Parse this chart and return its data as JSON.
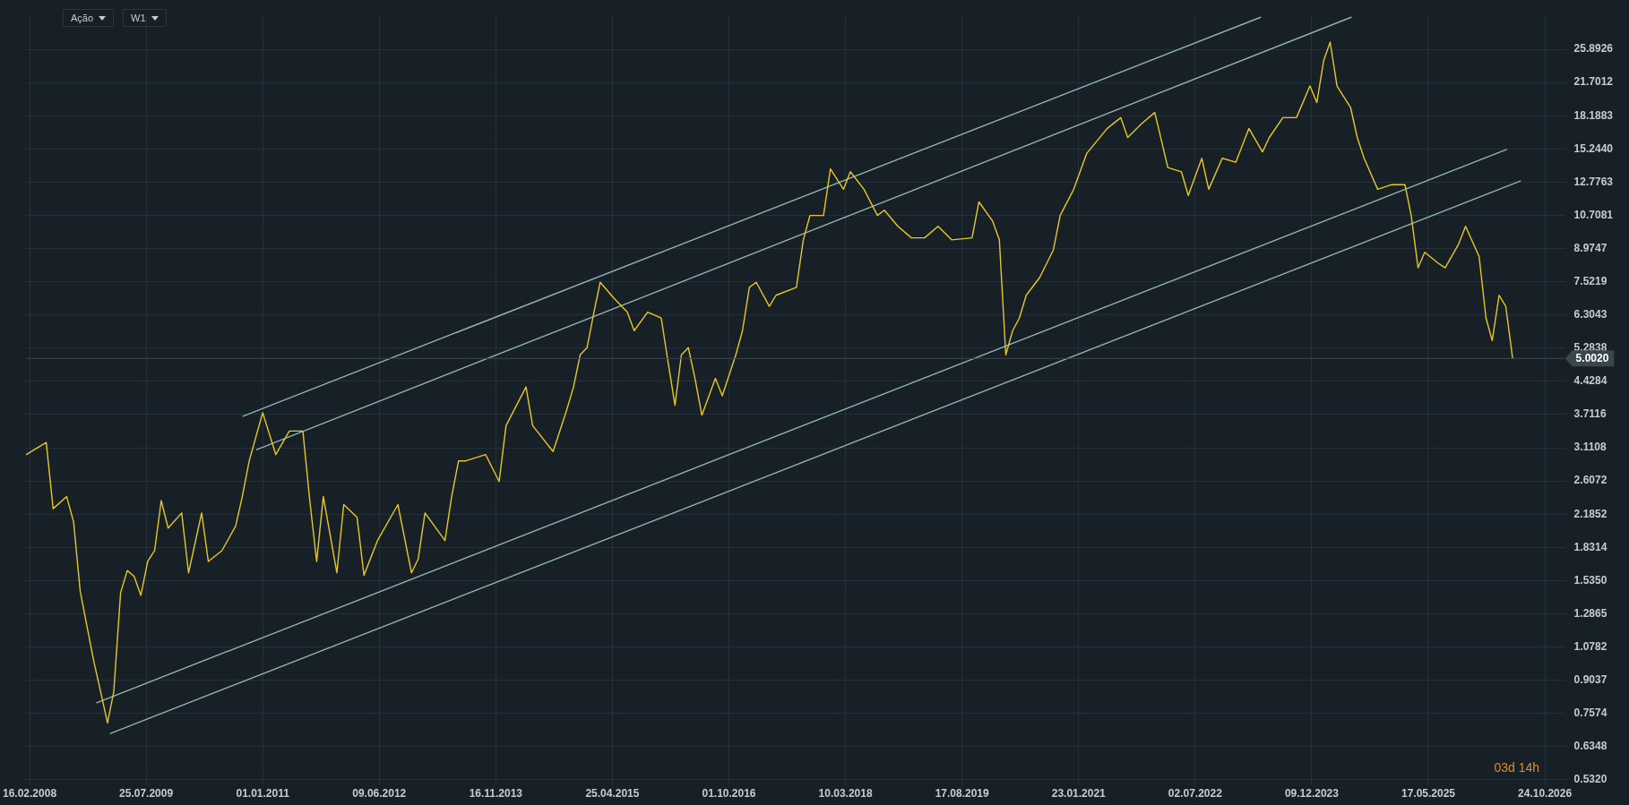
{
  "chart_data": {
    "type": "line",
    "annotations": [
      "Ação",
      "W1",
      "03d 14h"
    ],
    "x": [
      "2008-02",
      "2008-05",
      "2008-06",
      "2008-08",
      "2008-09",
      "2008-10",
      "2008-11",
      "2008-12",
      "2009-01",
      "2009-02",
      "2009-03",
      "2009-04",
      "2009-05",
      "2009-06",
      "2009-07",
      "2009-08",
      "2009-09",
      "2009-10",
      "2009-11",
      "2010-01",
      "2010-02",
      "2010-04",
      "2010-05",
      "2010-07",
      "2010-09",
      "2010-10",
      "2010-11",
      "2011-01",
      "2011-03",
      "2011-05",
      "2011-07",
      "2011-08",
      "2011-09",
      "2011-10",
      "2011-12",
      "2012-01",
      "2012-03",
      "2012-04",
      "2012-06",
      "2012-09",
      "2012-11",
      "2012-12",
      "2013-01",
      "2013-04",
      "2013-05",
      "2013-06",
      "2013-07",
      "2013-10",
      "2013-12",
      "2014-01",
      "2014-04",
      "2014-05",
      "2014-08",
      "2014-10",
      "2014-11",
      "2014-12",
      "2015-01",
      "2015-02",
      "2015-03",
      "2015-05",
      "2015-07",
      "2015-08",
      "2015-10",
      "2015-12",
      "2016-01",
      "2016-02",
      "2016-03",
      "2016-04",
      "2016-05",
      "2016-06",
      "2016-08",
      "2016-09",
      "2016-11",
      "2016-12",
      "2017-01",
      "2017-02",
      "2017-04",
      "2017-05",
      "2017-08",
      "2017-09",
      "2017-10",
      "2017-12",
      "2018-01",
      "2018-03",
      "2018-04",
      "2018-06",
      "2018-08",
      "2018-09",
      "2018-11",
      "2019-01",
      "2019-03",
      "2019-05",
      "2019-07",
      "2019-10",
      "2019-11",
      "2020-01",
      "2020-02",
      "2020-03",
      "2020-04",
      "2020-05",
      "2020-06",
      "2020-08",
      "2020-10",
      "2020-11",
      "2021-01",
      "2021-03",
      "2021-06",
      "2021-08",
      "2021-09",
      "2021-11",
      "2022-01",
      "2022-03",
      "2022-05",
      "2022-06",
      "2022-08",
      "2022-09",
      "2022-11",
      "2023-01",
      "2023-03",
      "2023-05",
      "2023-06",
      "2023-08",
      "2023-10",
      "2023-12",
      "2024-01",
      "2024-02",
      "2024-03",
      "2024-04",
      "2024-06",
      "2024-07",
      "2024-08",
      "2024-10",
      "2024-12",
      "2025-02",
      "2025-03",
      "2025-04",
      "2025-05",
      "2025-07",
      "2025-08",
      "2025-10",
      "2025-11",
      "2026-01",
      "2026-02",
      "2026-03",
      "2026-04",
      "2026-05",
      "2026-06"
    ],
    "series": [
      {
        "color": "#e8c820",
        "values": [
          3.0,
          3.2,
          2.25,
          2.4,
          2.1,
          1.45,
          1.2,
          1.0,
          0.85,
          0.72,
          0.85,
          1.44,
          1.62,
          1.57,
          1.42,
          1.7,
          1.8,
          2.35,
          2.03,
          2.2,
          1.6,
          2.2,
          1.7,
          1.8,
          2.05,
          2.4,
          2.9,
          3.75,
          3.0,
          3.4,
          3.4,
          2.35,
          1.7,
          2.4,
          1.6,
          2.3,
          2.15,
          1.58,
          1.9,
          2.3,
          1.6,
          1.72,
          2.2,
          1.9,
          2.4,
          2.9,
          2.9,
          3.0,
          2.6,
          3.5,
          4.3,
          3.5,
          3.05,
          3.8,
          4.3,
          5.1,
          5.3,
          6.4,
          7.5,
          6.9,
          6.4,
          5.8,
          6.4,
          6.2,
          4.9,
          3.9,
          5.1,
          5.3,
          4.5,
          3.7,
          4.5,
          4.1,
          5.1,
          5.8,
          7.3,
          7.5,
          6.6,
          7.0,
          7.3,
          9.4,
          10.7,
          10.7,
          13.7,
          12.3,
          13.5,
          12.3,
          10.7,
          11.0,
          10.1,
          9.5,
          9.5,
          10.1,
          9.4,
          9.5,
          11.5,
          10.4,
          9.4,
          5.1,
          5.8,
          6.2,
          7.0,
          7.7,
          8.9,
          10.7,
          12.3,
          14.9,
          17.0,
          18.0,
          16.2,
          17.4,
          18.5,
          13.8,
          13.5,
          11.9,
          14.5,
          12.3,
          14.5,
          14.2,
          17.0,
          15.0,
          16.2,
          18.0,
          18.0,
          21.3,
          19.5,
          24.4,
          26.9,
          21.3,
          19.0,
          16.2,
          14.5,
          12.3,
          12.6,
          12.6,
          10.7,
          8.1,
          8.8,
          8.3,
          8.1,
          9.2,
          10.1,
          8.6,
          6.2,
          5.5,
          7.0,
          6.6,
          5.0
        ]
      },
      {
        "type": "line",
        "color": "#8fb3ae",
        "x": [
          "2010-10-04",
          "2023-04-23"
        ],
        "values": [
          3.68,
          30.7
        ]
      },
      {
        "type": "line",
        "color": "#8fb3ae",
        "x": [
          "2010-12-05",
          "2024-06-04"
        ],
        "values": [
          3.08,
          30.7
        ]
      },
      {
        "type": "line",
        "color": "#8fb3ae",
        "x": [
          "2008-12-14",
          "2026-05-05"
        ],
        "values": [
          0.802,
          15.2
        ]
      },
      {
        "type": "line",
        "color": "#8fb3ae",
        "x": [
          "2009-02-14",
          "2026-07-06"
        ],
        "values": [
          0.681,
          12.85
        ]
      }
    ],
    "log": "y",
    "xlim": [
      "2008-01-30",
      "2027-01-23"
    ],
    "xticks": [
      {
        "value": "2008-02-16",
        "label": "16.02.2008"
      },
      {
        "value": "2009-07-25",
        "label": "25.07.2009"
      },
      {
        "value": "2011-01-01",
        "label": "01.01.2011"
      },
      {
        "value": "2012-06-09",
        "label": "09.06.2012"
      },
      {
        "value": "2013-11-16",
        "label": "16.11.2013"
      },
      {
        "value": "2015-04-25",
        "label": "25.04.2015"
      },
      {
        "value": "2016-10-01",
        "label": "01.10.2016"
      },
      {
        "value": "2018-03-10",
        "label": "10.03.2018"
      },
      {
        "value": "2019-08-17",
        "label": "17.08.2019"
      },
      {
        "value": "2021-01-23",
        "label": "23.01.2021"
      },
      {
        "value": "2022-07-02",
        "label": "02.07.2022"
      },
      {
        "value": "2023-12-09",
        "label": "09.12.2023"
      },
      {
        "value": "2025-05-17",
        "label": "17.05.2025"
      },
      {
        "value": "2026-10-24",
        "label": "24.10.2026"
      }
    ],
    "ylim": [
      0.518,
      31
    ],
    "yticks": [
      {
        "value": 0.532,
        "label": "0.5320"
      },
      {
        "value": 0.6348,
        "label": "0.6348"
      },
      {
        "value": 0.7574,
        "label": "0.7574"
      },
      {
        "value": 0.9037,
        "label": "0.9037"
      },
      {
        "value": 1.0782,
        "label": "1.0782"
      },
      {
        "value": 1.2865,
        "label": "1.2865"
      },
      {
        "value": 1.535,
        "label": "1.5350"
      },
      {
        "value": 1.8314,
        "label": "1.8314"
      },
      {
        "value": 2.1852,
        "label": "2.1852"
      },
      {
        "value": 2.6072,
        "label": "2.6072"
      },
      {
        "value": 3.1108,
        "label": "3.1108"
      },
      {
        "value": 3.7116,
        "label": "3.7116"
      },
      {
        "value": 4.4284,
        "label": "4.4284"
      },
      {
        "value": 5.2838,
        "label": "5.2838"
      },
      {
        "value": 6.3043,
        "label": "6.3043"
      },
      {
        "value": 7.5219,
        "label": "7.5219"
      },
      {
        "value": 8.9747,
        "label": "8.9747"
      },
      {
        "value": 10.7081,
        "label": "10.7081"
      },
      {
        "value": 12.7763,
        "label": "12.7763"
      },
      {
        "value": 15.244,
        "label": "15.2440"
      },
      {
        "value": 18.1883,
        "label": "18.1883"
      },
      {
        "value": 21.7012,
        "label": "21.7012"
      },
      {
        "value": 25.8926,
        "label": "25.8926"
      }
    ],
    "ref_lines": [
      {
        "axis": "y",
        "value": 5.002,
        "label": "5.0020",
        "color": "#3a464e"
      }
    ],
    "grid": true,
    "marker": "none",
    "line_style": "solid",
    "legend": false
  }
}
